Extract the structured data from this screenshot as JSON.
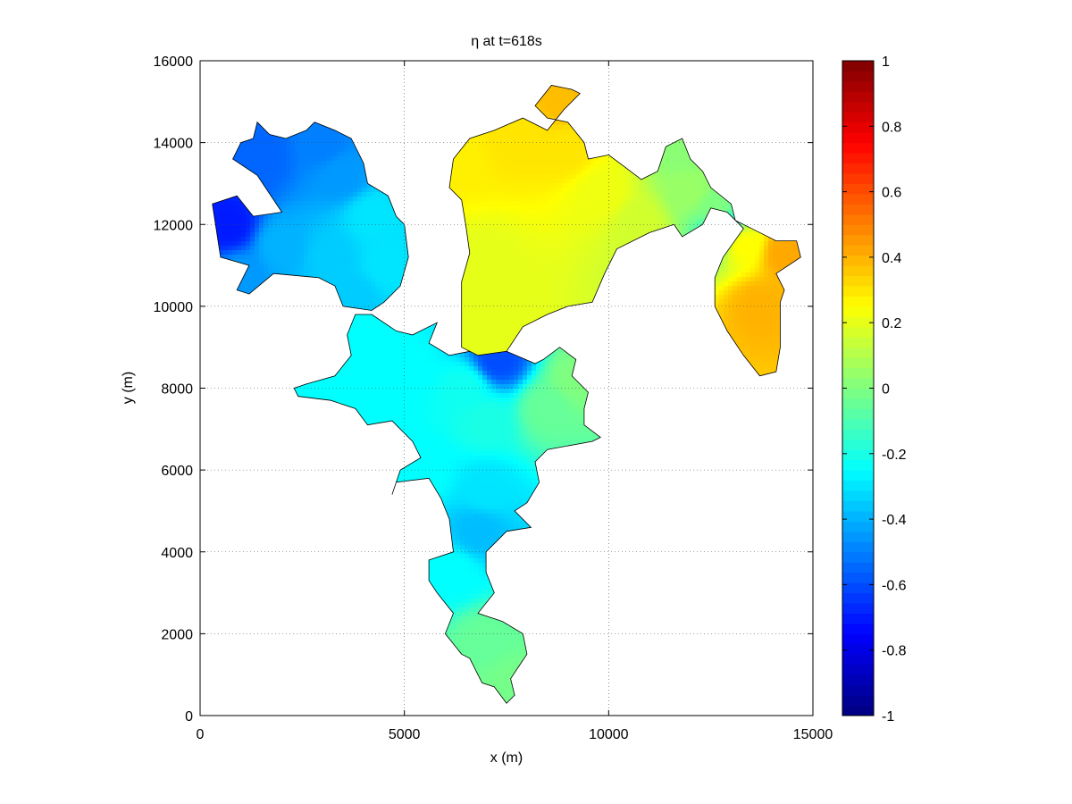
{
  "chart_data": {
    "type": "heatmap",
    "title": "η at t=618s",
    "xlabel": "x (m)",
    "ylabel": "y (m)",
    "xlim": [
      0,
      15000
    ],
    "ylim": [
      0,
      16000
    ],
    "xticks": [
      0,
      5000,
      10000,
      15000
    ],
    "yticks": [
      0,
      2000,
      4000,
      6000,
      8000,
      10000,
      12000,
      14000,
      16000
    ],
    "grid": true,
    "colorbar": {
      "colormap": "jet",
      "clim": [
        -1,
        1
      ],
      "ticks": [
        -1,
        -0.8,
        -0.6,
        -0.4,
        -0.2,
        0,
        0.2,
        0.4,
        0.6,
        0.8,
        1
      ],
      "tick_labels": [
        "-1",
        "-0.8",
        "-0.6",
        "-0.4",
        "-0.2",
        "0",
        "0.2",
        "0.4",
        "0.6",
        "0.8",
        "1"
      ]
    },
    "regions": [
      {
        "name": "northwest-basin",
        "eta": [
          [
            700,
            12000,
            -0.7
          ],
          [
            1500,
            13700,
            -0.55
          ],
          [
            3000,
            14000,
            -0.5
          ],
          [
            3500,
            13200,
            -0.45
          ],
          [
            2000,
            11500,
            -0.4
          ],
          [
            1000,
            10700,
            -0.45
          ],
          [
            3200,
            11200,
            -0.35
          ],
          [
            4200,
            12200,
            -0.3
          ],
          [
            4600,
            11000,
            -0.3
          ],
          [
            3800,
            10200,
            -0.35
          ]
        ],
        "outline": [
          [
            900,
            10400
          ],
          [
            1200,
            11000
          ],
          [
            500,
            11200
          ],
          [
            300,
            12500
          ],
          [
            900,
            12700
          ],
          [
            1300,
            12200
          ],
          [
            2000,
            12300
          ],
          [
            1400,
            13200
          ],
          [
            800,
            13600
          ],
          [
            1000,
            14000
          ],
          [
            1300,
            14100
          ],
          [
            1400,
            14500
          ],
          [
            1700,
            14200
          ],
          [
            2100,
            14100
          ],
          [
            2600,
            14300
          ],
          [
            2800,
            14500
          ],
          [
            3300,
            14300
          ],
          [
            3700,
            14100
          ],
          [
            4000,
            13500
          ],
          [
            4100,
            13000
          ],
          [
            4600,
            12700
          ],
          [
            4800,
            12200
          ],
          [
            5000,
            12000
          ],
          [
            5100,
            11200
          ],
          [
            4900,
            10500
          ],
          [
            4500,
            10100
          ],
          [
            4200,
            9900
          ],
          [
            3500,
            10000
          ],
          [
            3300,
            10500
          ],
          [
            2900,
            10700
          ],
          [
            1800,
            10800
          ],
          [
            1200,
            10300
          ]
        ]
      },
      {
        "name": "central-basin",
        "eta": [
          [
            4000,
            9000,
            -0.25
          ],
          [
            3000,
            8000,
            -0.25
          ],
          [
            5000,
            8500,
            -0.25
          ],
          [
            6500,
            8000,
            -0.22
          ],
          [
            8500,
            7500,
            -0.05
          ],
          [
            9200,
            8200,
            0.0
          ],
          [
            7000,
            7200,
            -0.2
          ],
          [
            5500,
            6000,
            -0.25
          ],
          [
            7000,
            5500,
            -0.3
          ],
          [
            6800,
            4500,
            -0.38
          ],
          [
            6200,
            3500,
            -0.25
          ],
          [
            7000,
            1800,
            -0.05
          ],
          [
            7600,
            800,
            -0.02
          ],
          [
            7300,
            8700,
            -0.6
          ]
        ],
        "outline": [
          [
            4200,
            9800
          ],
          [
            4800,
            9400
          ],
          [
            5200,
            9300
          ],
          [
            5800,
            9600
          ],
          [
            5600,
            9100
          ],
          [
            6100,
            8800
          ],
          [
            6600,
            8900
          ],
          [
            7500,
            8900
          ],
          [
            8200,
            8600
          ],
          [
            8400,
            8700
          ],
          [
            8800,
            9000
          ],
          [
            9200,
            8700
          ],
          [
            9100,
            8300
          ],
          [
            9500,
            7900
          ],
          [
            9400,
            7500
          ],
          [
            9400,
            7100
          ],
          [
            9800,
            6800
          ],
          [
            9600,
            6700
          ],
          [
            8500,
            6500
          ],
          [
            8200,
            6200
          ],
          [
            8300,
            5700
          ],
          [
            8000,
            5200
          ],
          [
            7700,
            5000
          ],
          [
            8100,
            4600
          ],
          [
            7500,
            4500
          ],
          [
            7000,
            4000
          ],
          [
            7000,
            3500
          ],
          [
            7200,
            3000
          ],
          [
            6800,
            2500
          ],
          [
            7400,
            2300
          ],
          [
            7900,
            2000
          ],
          [
            8000,
            1500
          ],
          [
            7800,
            1200
          ],
          [
            7600,
            900
          ],
          [
            7700,
            500
          ],
          [
            7500,
            300
          ],
          [
            7200,
            700
          ],
          [
            6900,
            800
          ],
          [
            6600,
            1400
          ],
          [
            6400,
            1500
          ],
          [
            6000,
            2000
          ],
          [
            6200,
            2500
          ],
          [
            5800,
            3000
          ],
          [
            5600,
            3300
          ],
          [
            5600,
            3800
          ],
          [
            6200,
            4000
          ],
          [
            6100,
            4800
          ],
          [
            5900,
            5300
          ],
          [
            5600,
            5800
          ],
          [
            4800,
            5700
          ],
          [
            4700,
            5400
          ],
          [
            4900,
            6000
          ],
          [
            5400,
            6300
          ],
          [
            5200,
            6700
          ],
          [
            4700,
            7200
          ],
          [
            4100,
            7100
          ],
          [
            3800,
            7500
          ],
          [
            3200,
            7700
          ],
          [
            2400,
            7800
          ],
          [
            2300,
            8000
          ],
          [
            2600,
            8100
          ],
          [
            3300,
            8300
          ],
          [
            3700,
            8800
          ],
          [
            3600,
            9300
          ],
          [
            3800,
            9800
          ]
        ]
      },
      {
        "name": "north-lake",
        "eta": [
          [
            6600,
            9200,
            0.2
          ],
          [
            7000,
            11000,
            0.2
          ],
          [
            6200,
            13600,
            0.28
          ],
          [
            7800,
            14200,
            0.3
          ],
          [
            8800,
            15100,
            0.38
          ],
          [
            9000,
            13800,
            0.3
          ],
          [
            9800,
            12800,
            0.22
          ],
          [
            10800,
            12000,
            0.16
          ],
          [
            12000,
            12800,
            0.05
          ],
          [
            11800,
            13800,
            0.02
          ],
          [
            12600,
            12400,
            0.0
          ],
          [
            12800,
            11900,
            -0.25
          ],
          [
            13300,
            11500,
            0.25
          ],
          [
            13700,
            10000,
            0.4
          ],
          [
            14300,
            11300,
            0.42
          ]
        ],
        "outline": [
          [
            6400,
            9000
          ],
          [
            6800,
            8800
          ],
          [
            7500,
            8900
          ],
          [
            7900,
            9500
          ],
          [
            8500,
            9800
          ],
          [
            9000,
            10000
          ],
          [
            9600,
            10100
          ],
          [
            9900,
            10800
          ],
          [
            10200,
            11400
          ],
          [
            11000,
            11800
          ],
          [
            11600,
            12000
          ],
          [
            11800,
            11700
          ],
          [
            12300,
            12000
          ],
          [
            12500,
            12400
          ],
          [
            12900,
            12300
          ],
          [
            13300,
            11900
          ],
          [
            12800,
            11200
          ],
          [
            12600,
            10700
          ],
          [
            12600,
            10000
          ],
          [
            12900,
            9400
          ],
          [
            13300,
            8800
          ],
          [
            13700,
            8300
          ],
          [
            14100,
            8400
          ],
          [
            14200,
            9000
          ],
          [
            14200,
            10100
          ],
          [
            14300,
            10400
          ],
          [
            14100,
            10800
          ],
          [
            14700,
            11200
          ],
          [
            14600,
            11600
          ],
          [
            14100,
            11600
          ],
          [
            13500,
            11900
          ],
          [
            13100,
            12100
          ],
          [
            13000,
            12500
          ],
          [
            12500,
            12900
          ],
          [
            12300,
            13300
          ],
          [
            12000,
            13600
          ],
          [
            11800,
            14100
          ],
          [
            11400,
            13900
          ],
          [
            11200,
            13300
          ],
          [
            10800,
            13100
          ],
          [
            10400,
            13400
          ],
          [
            10000,
            13700
          ],
          [
            9500,
            13600
          ],
          [
            9400,
            14000
          ],
          [
            9000,
            14500
          ],
          [
            8500,
            14600
          ],
          [
            8200,
            14900
          ],
          [
            8600,
            15400
          ],
          [
            9100,
            15300
          ],
          [
            9300,
            15200
          ],
          [
            8900,
            14800
          ],
          [
            8500,
            14300
          ],
          [
            7900,
            14600
          ],
          [
            7200,
            14300
          ],
          [
            6600,
            14100
          ],
          [
            6200,
            13600
          ],
          [
            6100,
            12900
          ],
          [
            6400,
            12600
          ],
          [
            6500,
            12000
          ],
          [
            6600,
            11300
          ],
          [
            6400,
            10600
          ],
          [
            6400,
            9700
          ]
        ]
      }
    ]
  }
}
